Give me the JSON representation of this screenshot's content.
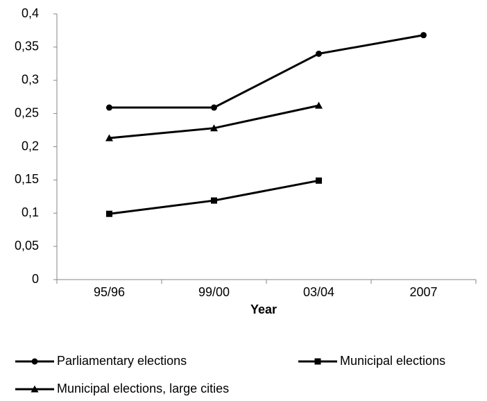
{
  "chart_data": {
    "type": "line",
    "x_label": "Year",
    "categories": [
      "95/96",
      "99/00",
      "03/04",
      "2007"
    ],
    "series": [
      {
        "name": "Parliamentary elections",
        "color": "#000000",
        "marker": "circle",
        "values": [
          0.259,
          0.259,
          0.34,
          0.368
        ]
      },
      {
        "name": "Municipal elections",
        "color": "#000000",
        "marker": "square",
        "values": [
          0.099,
          0.119,
          0.149,
          null
        ]
      },
      {
        "name": "Municipal elections, large cities",
        "color": "#000000",
        "marker": "triangle",
        "values": [
          0.213,
          0.228,
          0.262,
          null
        ]
      }
    ],
    "ylim": [
      0,
      0.4
    ],
    "yticks": [
      0,
      {
        "value": 0.05,
        "label": "0,05"
      },
      {
        "value": 0.1,
        "label": "0,1"
      },
      {
        "value": 0.15,
        "label": "0,15"
      },
      {
        "value": 0.2,
        "label": "0,2"
      },
      {
        "value": 0.25,
        "label": "0,25"
      },
      {
        "value": 0.3,
        "label": "0,3"
      },
      {
        "value": 0.35,
        "label": "0,35"
      },
      {
        "value": 0.4,
        "label": "0,4"
      }
    ],
    "grid": false,
    "legend": "bottom"
  }
}
